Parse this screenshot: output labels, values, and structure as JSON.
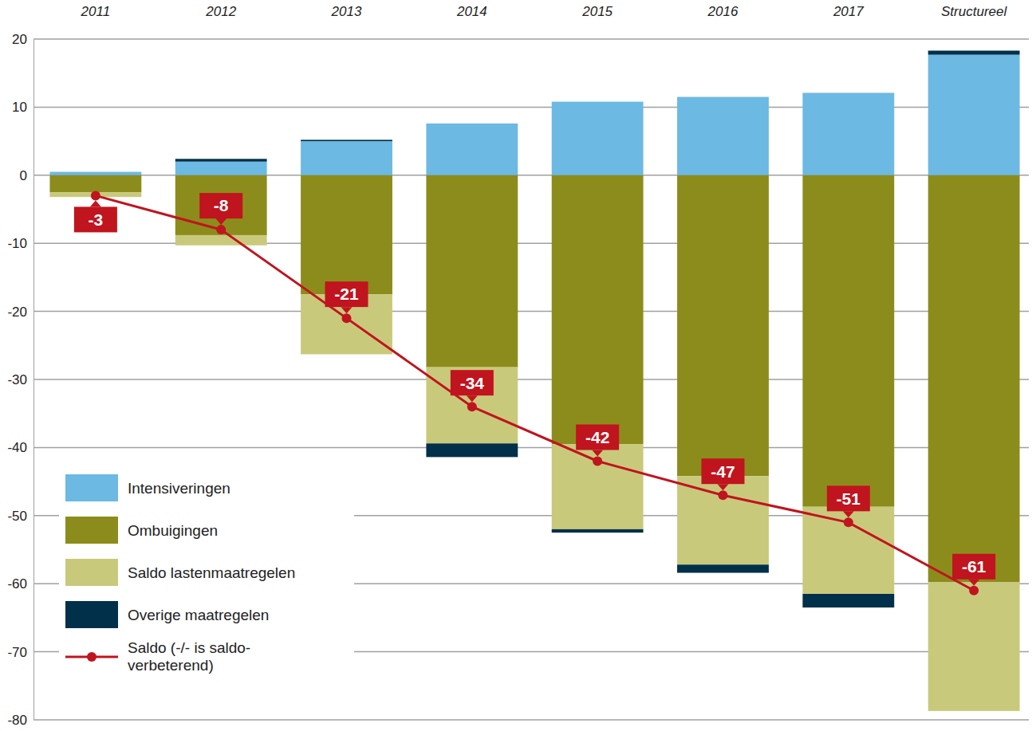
{
  "chart_data": {
    "type": "bar",
    "stacked": true,
    "grid": true,
    "legend": "lower left",
    "categories": [
      "2011",
      "2012",
      "2013",
      "2014",
      "2015",
      "2016",
      "2017",
      "Structureel"
    ],
    "ylim": [
      -80,
      20
    ],
    "yticks": [
      -80,
      -70,
      -60,
      -50,
      -40,
      -30,
      -20,
      -10,
      0,
      10,
      20
    ],
    "series": [
      {
        "name": "Intensiveringen",
        "color": "#6cb9e3",
        "values": [
          0.5,
          2.0,
          5.0,
          7.6,
          10.8,
          11.5,
          12.1,
          17.7
        ]
      },
      {
        "name": "Ombuigingen",
        "color": "#8c8c1c",
        "values": [
          -2.5,
          -8.8,
          -17.5,
          -28.2,
          -39.5,
          -44.2,
          -48.7,
          -59.8
        ]
      },
      {
        "name": "Saldo lastenmaatregelen",
        "color": "#c9c97c",
        "values": [
          -0.7,
          -1.5,
          -8.8,
          -11.2,
          -12.5,
          -13.0,
          -12.8,
          -18.9
        ]
      },
      {
        "name": "Overige maatregelen",
        "color": "#00304a",
        "values": [
          0,
          0.4,
          0.2,
          -2.0,
          -0.5,
          -1.2,
          -2.0,
          0.6
        ]
      },
      {
        "name": "Saldo (-/- is saldo-verbeterend)",
        "type": "line",
        "color": "#c0141e",
        "marker": "circle",
        "data_labels": true,
        "values": [
          -3,
          -8,
          -21,
          -34,
          -42,
          -47,
          -51,
          -61
        ]
      }
    ]
  }
}
